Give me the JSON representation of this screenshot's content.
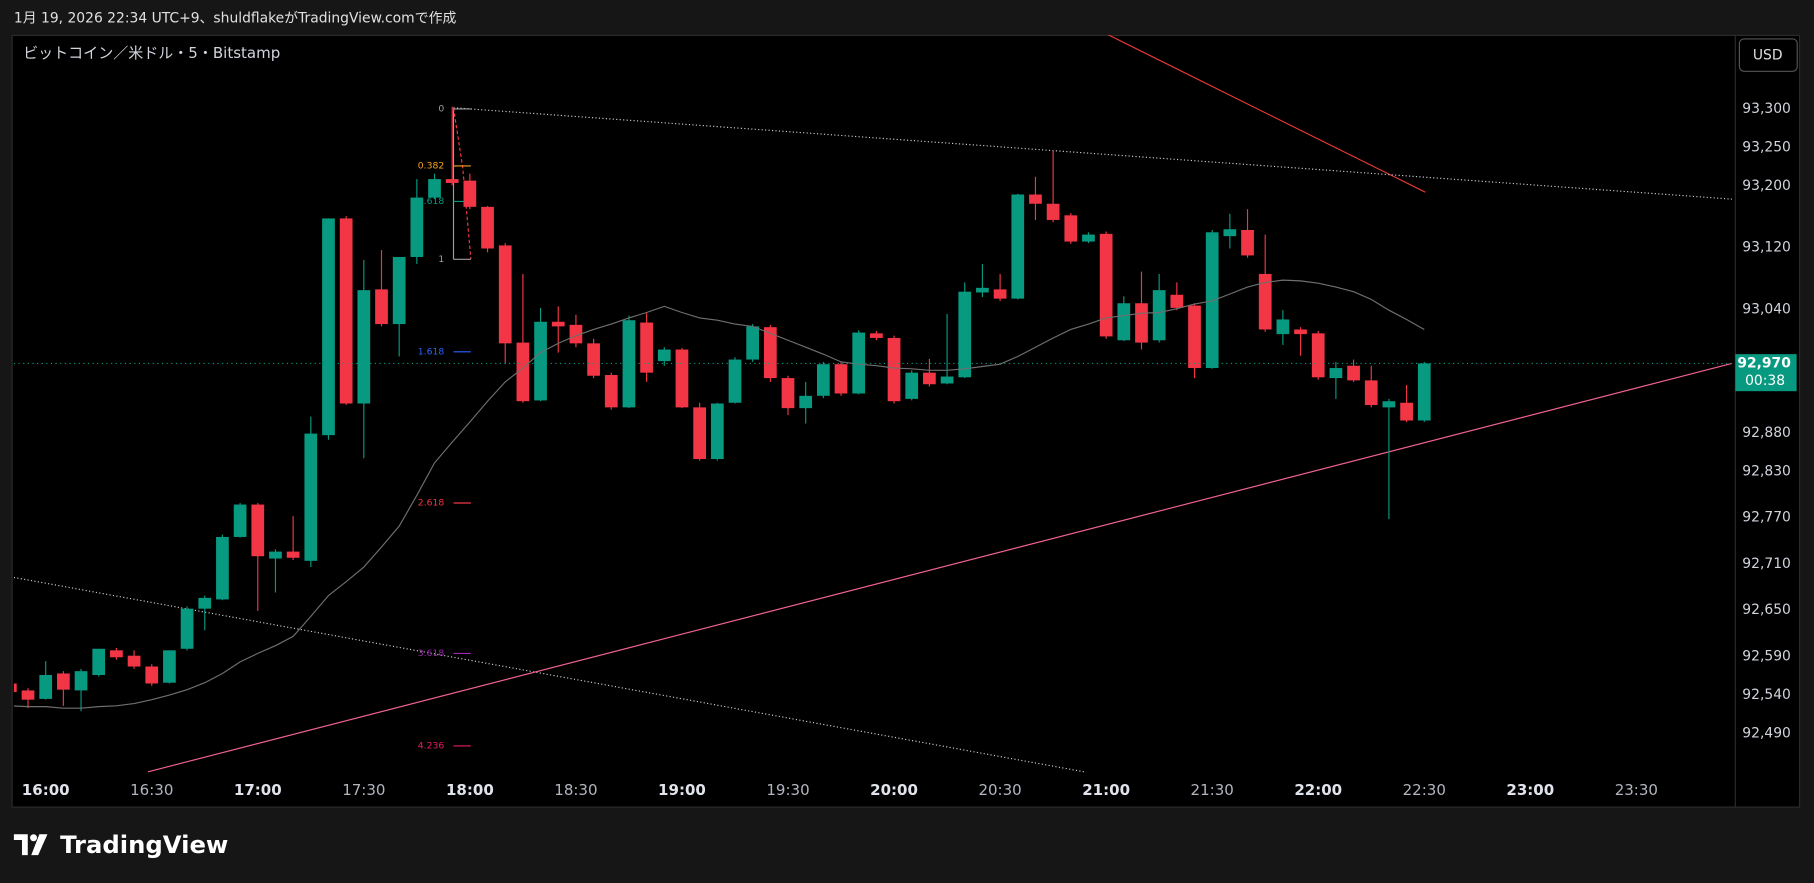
{
  "header": {
    "caption": "1月 19, 2026 22:34 UTC+9、shuldflakeがTradingView.comで作成"
  },
  "chart_data": {
    "type": "candlestick",
    "title": "ビットコイン／米ドル・5・Bitstamp",
    "currency": "USD",
    "x": [
      "15:50",
      "15:55",
      "16:00",
      "16:05",
      "16:10",
      "16:15",
      "16:20",
      "16:25",
      "16:30",
      "16:35",
      "16:40",
      "16:45",
      "16:50",
      "16:55",
      "17:00",
      "17:05",
      "17:10",
      "17:15",
      "17:20",
      "17:25",
      "17:30",
      "17:35",
      "17:40",
      "17:45",
      "17:50",
      "17:55",
      "18:00",
      "18:05",
      "18:10",
      "18:15",
      "18:20",
      "18:25",
      "18:30",
      "18:35",
      "18:40",
      "18:45",
      "18:50",
      "18:55",
      "19:00",
      "19:05",
      "19:10",
      "19:15",
      "19:20",
      "19:25",
      "19:30",
      "19:35",
      "19:40",
      "19:45",
      "19:50",
      "19:55",
      "20:00",
      "20:05",
      "20:10",
      "20:15",
      "20:20",
      "20:25",
      "20:30",
      "20:35",
      "20:40",
      "20:45",
      "20:50",
      "20:55",
      "21:00",
      "21:05",
      "21:10",
      "21:15",
      "21:20",
      "21:25",
      "21:30",
      "21:35",
      "21:40",
      "21:45",
      "21:50",
      "21:55",
      "22:00",
      "22:05",
      "22:10",
      "22:15",
      "22:20",
      "22:25",
      "22:30"
    ],
    "open": [
      92555,
      92546,
      92535,
      92568,
      92546,
      92566,
      92598,
      92591,
      92577,
      92556,
      92600,
      92652,
      92664,
      92745,
      92787,
      92717,
      92726,
      92714,
      92877,
      93158,
      92918,
      93066,
      93021,
      93108,
      93185,
      93209,
      93207,
      93173,
      93123,
      92997,
      92922,
      93024,
      93020,
      92996,
      92955,
      92913,
      93023,
      92973,
      92988,
      92913,
      92846,
      92919,
      92975,
      93017,
      92951,
      92912,
      92928,
      92969,
      92931,
      93009,
      93003,
      92924,
      92958,
      92944,
      92952,
      93062,
      93066,
      93054,
      93189,
      93177,
      93162,
      93128,
      93138,
      93000,
      93048,
      93000,
      93059,
      93045,
      92964,
      93135,
      93143,
      93086,
      93008,
      93014,
      93009,
      92951,
      92967,
      92948,
      92913,
      92919,
      92896
    ],
    "high": [
      92559,
      92549,
      92584,
      92571,
      92574,
      92600,
      92601,
      92598,
      92580,
      92598,
      92655,
      92669,
      92748,
      92789,
      92789,
      92729,
      92772,
      92901,
      93158,
      93161,
      93104,
      93117,
      93108,
      93209,
      93216,
      93303,
      93216,
      93174,
      93126,
      93086,
      93042,
      93044,
      93033,
      93002,
      92958,
      93032,
      93036,
      92991,
      92990,
      92919,
      92919,
      92978,
      93021,
      93020,
      92954,
      92946,
      92972,
      92972,
      93013,
      93012,
      93006,
      92961,
      92976,
      93034,
      93075,
      93099,
      93086,
      93190,
      93212,
      93246,
      93165,
      93140,
      93141,
      93057,
      93089,
      93086,
      93075,
      93048,
      93143,
      93164,
      93170,
      93137,
      93039,
      93017,
      93012,
      92972,
      92975,
      92967,
      92924,
      92942,
      92972
    ],
    "low": [
      92541,
      92523,
      92534,
      92526,
      92519,
      92564,
      92586,
      92574,
      92552,
      92555,
      92598,
      92624,
      92663,
      92744,
      92649,
      92673,
      92715,
      92706,
      92871,
      92916,
      92847,
      93018,
      92979,
      93099,
      93183,
      93201,
      93170,
      93114,
      92969,
      92919,
      92921,
      92984,
      92991,
      92951,
      92910,
      92912,
      92946,
      92967,
      92912,
      92844,
      92844,
      92918,
      92972,
      92946,
      92903,
      92892,
      92925,
      92928,
      92930,
      93000,
      92918,
      92922,
      92940,
      92943,
      92951,
      93056,
      93051,
      93053,
      93156,
      93153,
      93125,
      93126,
      93002,
      92999,
      92988,
      92997,
      93039,
      92951,
      92963,
      93119,
      93107,
      93011,
      92994,
      92980,
      92949,
      92924,
      92946,
      92913,
      92768,
      92894,
      92894
    ],
    "close": [
      92544,
      92534,
      92566,
      92547,
      92571,
      92600,
      92589,
      92577,
      92555,
      92598,
      92652,
      92666,
      92745,
      92787,
      92720,
      92726,
      92718,
      92879,
      93158,
      92918,
      93065,
      93021,
      93108,
      93185,
      93209,
      93204,
      93173,
      93119,
      92996,
      92921,
      93024,
      93018,
      92996,
      92954,
      92913,
      93026,
      92958,
      92988,
      92913,
      92846,
      92918,
      92975,
      93018,
      92951,
      92912,
      92928,
      92969,
      92931,
      93010,
      93003,
      92921,
      92958,
      92943,
      92953,
      93063,
      93068,
      93054,
      93189,
      93177,
      93156,
      93128,
      93137,
      93005,
      93048,
      92997,
      93065,
      93042,
      92964,
      93140,
      93144,
      93110,
      93014,
      93027,
      93008,
      92952,
      92964,
      92948,
      92916,
      92921,
      92896,
      92970
    ],
    "up_color": "#089981",
    "down_color": "#f23645",
    "ma": {
      "color": "#6f6f6f",
      "values": [
        92526,
        92525,
        92525,
        92523,
        92523,
        92525,
        92526,
        92529,
        92534,
        92540,
        92547,
        92556,
        92568,
        92583,
        92594,
        92604,
        92616,
        92642,
        92669,
        92687,
        92706,
        92732,
        92759,
        92799,
        92841,
        92868,
        92894,
        92921,
        92946,
        92964,
        92984,
        92996,
        93006,
        93014,
        93021,
        93029,
        93036,
        93044,
        93036,
        93029,
        93026,
        93021,
        93018,
        93009,
        93000,
        92991,
        92982,
        92972,
        92969,
        92967,
        92964,
        92963,
        92961,
        92961,
        92963,
        92966,
        92969,
        92979,
        92991,
        93003,
        93014,
        93021,
        93029,
        93032,
        93035,
        93036,
        93041,
        93047,
        93051,
        93060,
        93069,
        93075,
        93078,
        93077,
        93074,
        93069,
        93063,
        93053,
        93039,
        93027,
        93014
      ]
    },
    "last_price": {
      "value": 92970,
      "label": "92,970"
    },
    "countdown": "00:38",
    "xlim": [
      "15:51",
      "23:58"
    ],
    "xticks": [
      "16:00",
      "16:30",
      "17:00",
      "17:30",
      "18:00",
      "18:30",
      "19:00",
      "19:30",
      "20:00",
      "20:30",
      "21:00",
      "21:30",
      "22:00",
      "22:30",
      "23:00",
      "23:30"
    ],
    "ylim": [
      92439,
      93396
    ],
    "yticks": [
      {
        "value": 93300,
        "label": "93,300"
      },
      {
        "value": 93250,
        "label": "93,250"
      },
      {
        "value": 93200,
        "label": "93,200"
      },
      {
        "value": 93120,
        "label": "93,120"
      },
      {
        "value": 93040,
        "label": "93,040"
      },
      {
        "value": 92880,
        "label": "92,880"
      },
      {
        "value": 92830,
        "label": "92,830"
      },
      {
        "value": 92770,
        "label": "92,770"
      },
      {
        "value": 92710,
        "label": "92,710"
      },
      {
        "value": 92650,
        "label": "92,650"
      },
      {
        "value": 92590,
        "label": "92,590"
      },
      {
        "value": 92540,
        "label": "92,540"
      },
      {
        "value": 92490,
        "label": "92,490"
      }
    ],
    "grid": false,
    "fib": {
      "levels": [
        {
          "level": 0,
          "price": 93300,
          "color": "#9e9e9e"
        },
        {
          "level": 0.382,
          "price": 93226,
          "color": "#f7a21b"
        },
        {
          "level": 0.618,
          "price": 93180,
          "color": "#089981"
        },
        {
          "level": 1,
          "price": 93105,
          "color": "#9e9e9e"
        },
        {
          "level": 1.618,
          "price": 92985,
          "color": "#2962ff"
        },
        {
          "level": 2.618,
          "price": 92789,
          "color": "#f23645"
        },
        {
          "level": 3.618,
          "price": 92594,
          "color": "#9c27b0"
        },
        {
          "level": 4.236,
          "price": 92474,
          "color": "#e91e63"
        }
      ]
    }
  },
  "footer": {
    "brand": "TradingView"
  }
}
